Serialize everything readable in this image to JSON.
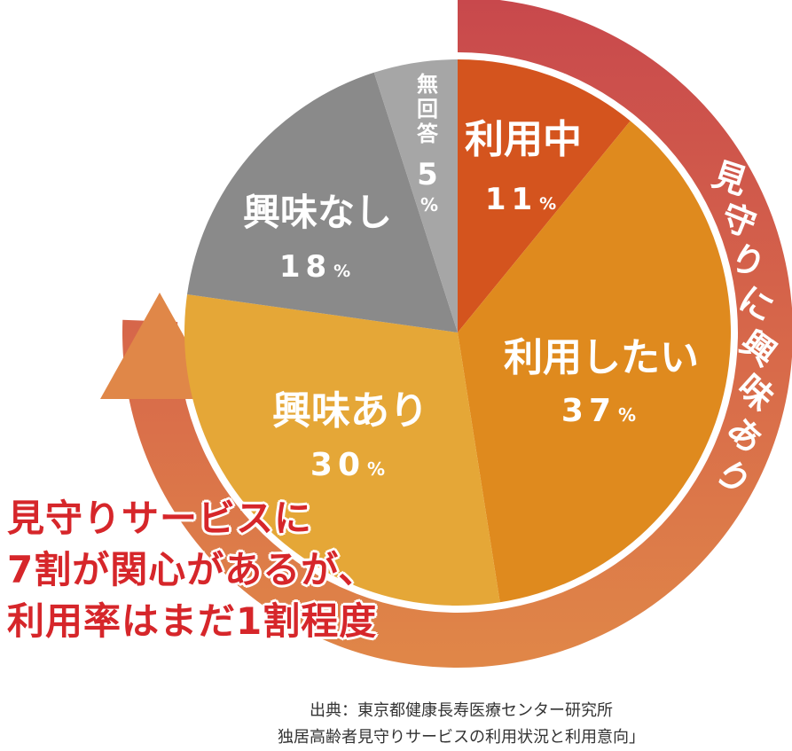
{
  "chart_data": {
    "type": "pie",
    "title": "",
    "slices": [
      {
        "label": "利用中",
        "value": 11,
        "display": "11",
        "unit": "%",
        "color": "#d4541e"
      },
      {
        "label": "利用したい",
        "value": 37,
        "display": "37",
        "unit": "%",
        "color": "#df8a1e"
      },
      {
        "label": "興味あり",
        "value": 30,
        "display": "30",
        "unit": "%",
        "color": "#e5a737"
      },
      {
        "label": "興味なし",
        "value": 18,
        "display": "18",
        "unit": "%",
        "color": "#8a8a8a"
      },
      {
        "label": "無回答",
        "value": 5,
        "display": "5",
        "unit": "%",
        "color": "#a6a6a6"
      }
    ],
    "outer_arc_label": "見守りに興味あり",
    "outer_arc_color": "#d4574c"
  },
  "headline": {
    "lines": [
      "見守りサービスに",
      "7割が関心があるが、",
      "利用率はまだ1割程度"
    ],
    "color": "#d6262a"
  },
  "source": {
    "line1": "出典：東京都健康長寿医療センター研究所",
    "line2": "独居高齢者見守りサービスの利用状況と利用意向」"
  },
  "arrow_color": "#e08748"
}
